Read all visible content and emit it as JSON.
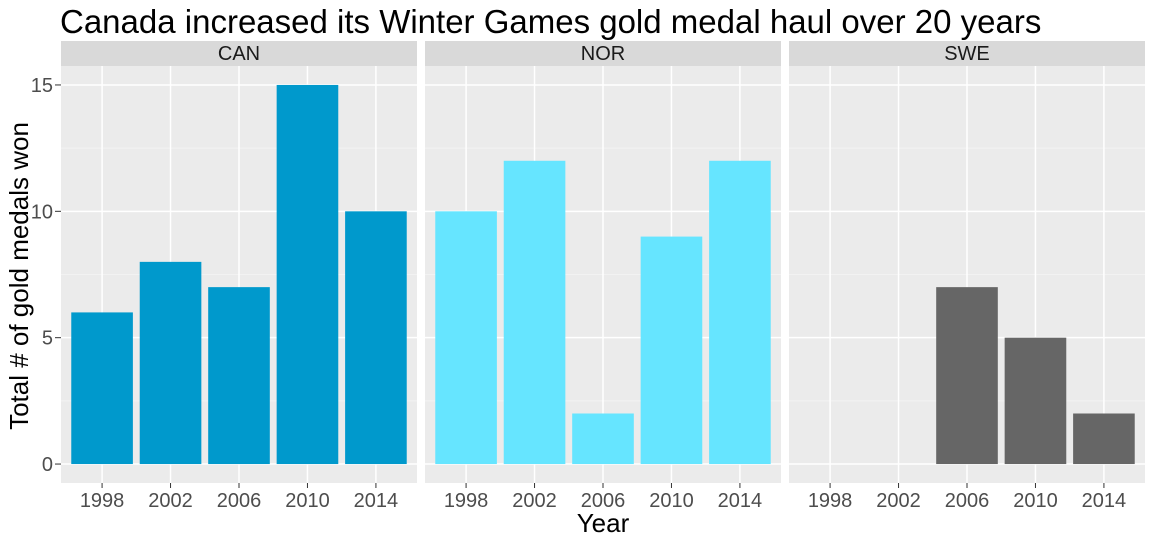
{
  "chart_data": {
    "type": "bar",
    "title": "Canada increased its Winter Games gold medal haul over 20 years",
    "xlabel": "Year",
    "ylabel": "Total # of gold medals won",
    "categories": [
      "1998",
      "2002",
      "2006",
      "2010",
      "2014"
    ],
    "ylim": [
      -0.75,
      15.75
    ],
    "yticks": [
      0,
      5,
      10,
      15
    ],
    "grid": true,
    "legend": "none",
    "facets": [
      {
        "name": "CAN",
        "color": "#0099CC",
        "values": [
          6,
          8,
          7,
          15,
          10
        ]
      },
      {
        "name": "NOR",
        "color": "#66E5FF",
        "values": [
          10,
          12,
          2,
          9,
          12
        ]
      },
      {
        "name": "SWE",
        "color": "#666666",
        "values": [
          null,
          null,
          7,
          5,
          2
        ]
      }
    ]
  }
}
